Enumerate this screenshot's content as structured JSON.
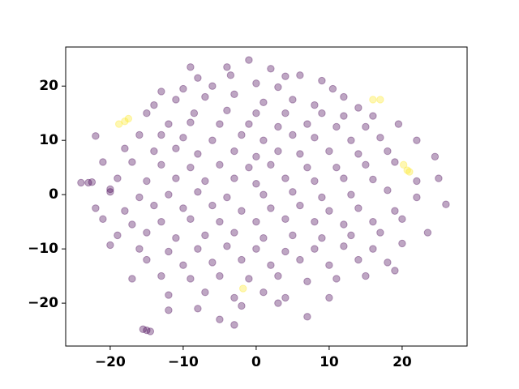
{
  "chart_data": {
    "type": "scatter",
    "xlim": [
      -26.1,
      28.9
    ],
    "ylim": [
      -27.9,
      27.2
    ],
    "xticks": [
      {
        "value": -20,
        "label": "−20"
      },
      {
        "value": -10,
        "label": "−10"
      },
      0,
      10,
      20
    ],
    "yticks": [
      {
        "value": -20,
        "label": "−20"
      },
      {
        "value": -10,
        "label": "−10"
      },
      0,
      10,
      20
    ],
    "alpha": 0.35,
    "series": [
      {
        "color": "#440154",
        "x": [
          -1,
          -9,
          -4,
          2,
          -3.5,
          4,
          -8,
          6,
          9,
          -13,
          -10,
          -6,
          0,
          3,
          10.5,
          12,
          -14,
          -11,
          -7,
          -3,
          1,
          5,
          8,
          14,
          -15,
          -8.5,
          -4,
          0,
          4,
          9,
          12,
          16,
          -12,
          -9,
          -5,
          -1,
          3,
          7,
          11,
          15,
          19.5,
          -16,
          -13,
          -10,
          -6,
          -2,
          1,
          5,
          8,
          13,
          17,
          22,
          -22,
          -18,
          -14,
          -11,
          -8,
          -3,
          0,
          3,
          6,
          10,
          14,
          18,
          -21,
          -17,
          -13,
          -9,
          -5,
          -1,
          2,
          7,
          11,
          15,
          19,
          24.5,
          -24,
          -23,
          -22.5,
          -19,
          -15,
          -11,
          -7,
          -3,
          0,
          4,
          8,
          12,
          16,
          22,
          25,
          -20,
          -16,
          -12,
          -8,
          -4,
          1,
          5,
          9,
          13,
          18,
          22,
          26,
          -22,
          -18,
          -14,
          -10,
          -6,
          -2,
          2,
          6,
          10,
          14,
          19,
          -21,
          -17,
          -13,
          -9,
          -5,
          0,
          4,
          8,
          12,
          16,
          20,
          -19,
          -15,
          -11,
          -7,
          -3,
          1,
          5,
          9,
          13,
          17,
          23.5,
          -20,
          -16,
          -12,
          -8,
          -4,
          0,
          4,
          8,
          12,
          16,
          20,
          -15,
          -10,
          -6,
          -2,
          2,
          6,
          10,
          14,
          18,
          -17,
          -13,
          -9,
          -5,
          -1,
          3,
          7,
          11,
          15,
          19,
          -12,
          -7,
          -3,
          1,
          4,
          10,
          -12,
          -8,
          -2,
          3,
          7,
          -5,
          -3,
          -15,
          -14.5,
          -15.5,
          -20
        ],
        "values": [
          24.8,
          23.5,
          23.5,
          23.2,
          22,
          21.8,
          21.5,
          22,
          21,
          19,
          19.5,
          20,
          20.5,
          19.8,
          19.5,
          18,
          16.5,
          17.5,
          18,
          18.5,
          17,
          17.5,
          16.5,
          16,
          15,
          15,
          15.5,
          15,
          15,
          15,
          14.5,
          14.5,
          13,
          13.3,
          13,
          13,
          12.5,
          13,
          12.5,
          12.5,
          13,
          11,
          11,
          10.5,
          10,
          11,
          10,
          11,
          10.5,
          10,
          10.5,
          10,
          10.8,
          8.5,
          8,
          8.5,
          7.5,
          8,
          7,
          8,
          7.5,
          8,
          7.5,
          8,
          6,
          6,
          5.5,
          5,
          5.5,
          5,
          5.5,
          5,
          5,
          5.5,
          6,
          7,
          2.2,
          2.2,
          2.3,
          3,
          2.5,
          3,
          2.5,
          3,
          2,
          3,
          2.5,
          3,
          2.8,
          2.5,
          3,
          0.5,
          -0.5,
          0,
          0.5,
          -0.5,
          0,
          0.5,
          -0.5,
          0,
          0.8,
          -0.5,
          -1.8,
          -2.5,
          -3,
          -2,
          -2.5,
          -2,
          -3,
          -2.5,
          -2,
          -3,
          -2.5,
          -3,
          -4.5,
          -5.5,
          -5,
          -4.5,
          -5,
          -5,
          -4.5,
          -5,
          -5.5,
          -5,
          -4.5,
          -7.5,
          -7,
          -8,
          -7.5,
          -7,
          -8,
          -7.5,
          -8,
          -7.5,
          -7,
          -7,
          -9.3,
          -10,
          -10.5,
          -10,
          -9.5,
          -10,
          -10.5,
          -10,
          -9.5,
          -10,
          -9,
          -12,
          -13,
          -12.5,
          -12,
          -13,
          -12,
          -13,
          -12,
          -12.5,
          -15.5,
          -15,
          -15.5,
          -15,
          -15.5,
          -15,
          -16,
          -15.5,
          -15,
          -14,
          -18.5,
          -18,
          -19,
          -18,
          -19,
          -19,
          -21.3,
          -21,
          -20.5,
          -20,
          -22.5,
          -23,
          -24,
          -25,
          -25.2,
          -24.8,
          1
        ]
      },
      {
        "color": "#fde725",
        "x": [
          -18.8,
          -18,
          -17.5,
          16,
          17,
          20.2,
          20.7,
          21,
          -1.8
        ],
        "values": [
          13,
          13.5,
          14,
          17.5,
          17.5,
          5.5,
          4.5,
          4.2,
          -17.3
        ]
      }
    ]
  }
}
